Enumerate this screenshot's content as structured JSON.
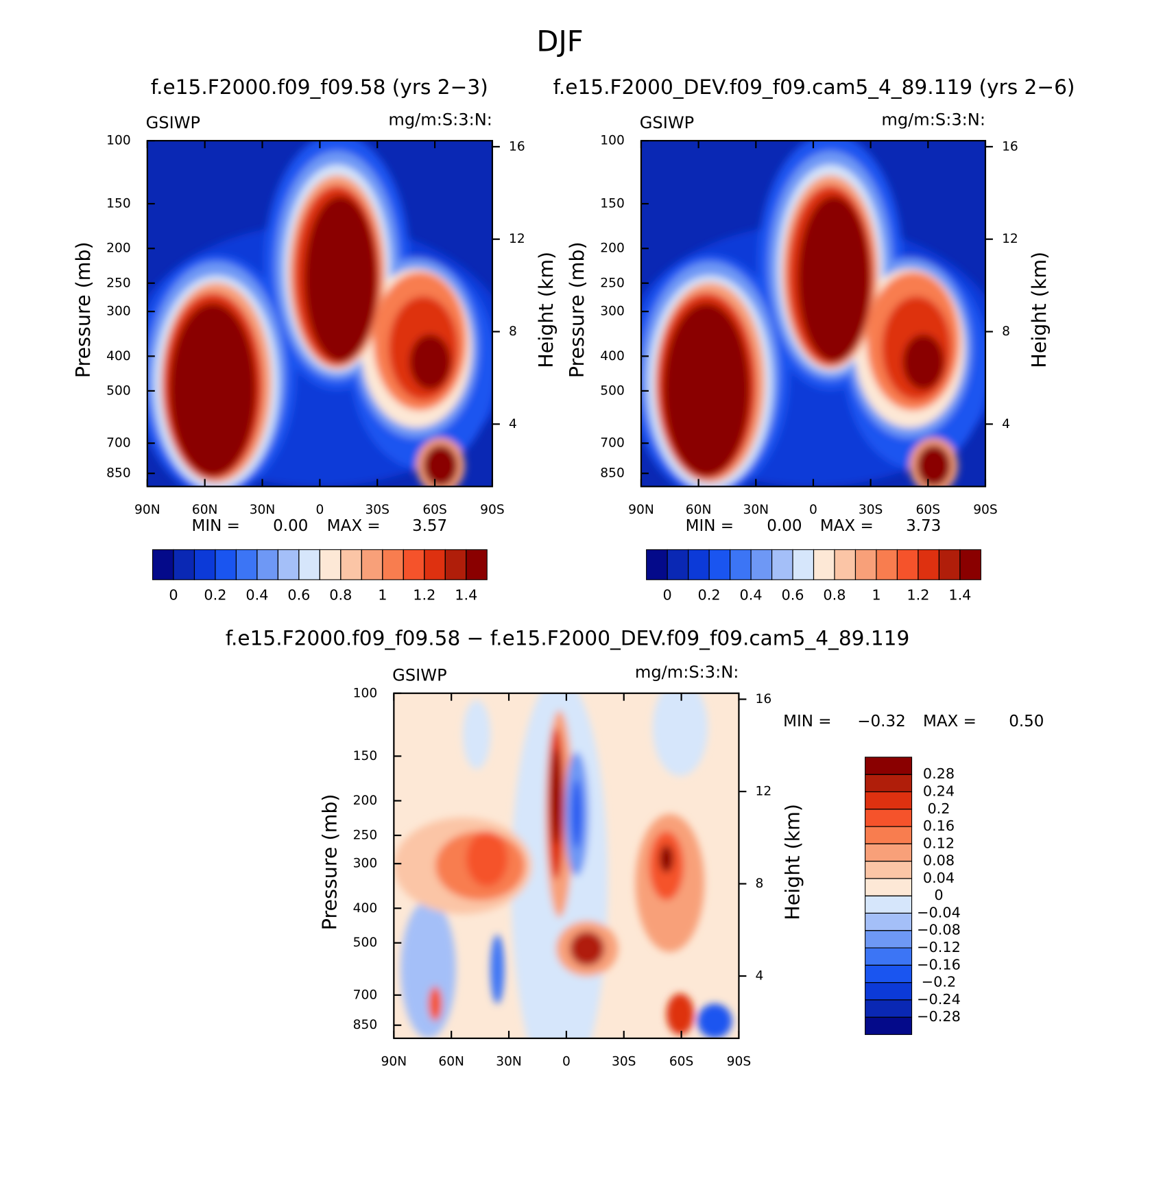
{
  "title": "DJF",
  "chart_data": [
    {
      "type": "contour",
      "title": "f.e15.F2000.f09_f09.58 (yrs 2−3)",
      "left_label": "GSIWP",
      "right_label": "mg/m:S:3:N:",
      "y_label": "Pressure (mb)",
      "y2_label": "Height (km)",
      "xlim": [
        90,
        -90
      ],
      "xticks": [
        {
          "value": 90,
          "label": "90N"
        },
        {
          "value": 60,
          "label": "60N"
        },
        {
          "value": 30,
          "label": "30N"
        },
        0,
        {
          "value": -30,
          "label": "30S"
        },
        {
          "value": -60,
          "label": "60S"
        },
        {
          "value": -90,
          "label": "90S"
        }
      ],
      "ylim": [
        100,
        925
      ],
      "yscale": "log",
      "yticks": [
        100,
        150,
        200,
        250,
        300,
        400,
        500,
        700,
        850
      ],
      "y2lim": [
        1.3,
        16.26
      ],
      "y2ticks": [
        4,
        8,
        12,
        16
      ],
      "stats": [
        {
          "name": "MIN =",
          "value": 0,
          "label": "0.00"
        },
        {
          "name": "MAX =",
          "value": 3.57
        }
      ],
      "colorbar": {
        "orientation": "horizontal",
        "levels": [
          0,
          0.1,
          0.2,
          0.3,
          0.4,
          0.5,
          0.6,
          0.7,
          0.8,
          0.9,
          1,
          1.1,
          1.2,
          1.3,
          1.4
        ],
        "ticks": [
          0,
          0.2,
          0.4,
          0.6,
          0.8,
          1,
          1.2,
          1.4
        ],
        "colors": [
          "#040a8a",
          "#0a28b4",
          "#0c3ad8",
          "#1a55f0",
          "#3c75f5",
          "#6e98f5",
          "#a4bff8",
          "#d6e6fb",
          "#fde8d6",
          "#fbc5a6",
          "#f8a079",
          "#f87d4f",
          "#f5532b",
          "#de3110",
          "#b01e0a",
          "#8a0000"
        ]
      }
    },
    {
      "type": "contour",
      "title": "f.e15.F2000_DEV.f09_f09.cam5_4_89.119 (yrs 2−6)",
      "left_label": "GSIWP",
      "right_label": "mg/m:S:3:N:",
      "y_label": "Pressure (mb)",
      "y2_label": "Height (km)",
      "xlim": [
        90,
        -90
      ],
      "xticks": [
        {
          "value": 90,
          "label": "90N"
        },
        {
          "value": 60,
          "label": "60N"
        },
        {
          "value": 30,
          "label": "30N"
        },
        0,
        {
          "value": -30,
          "label": "30S"
        },
        {
          "value": -60,
          "label": "60S"
        },
        {
          "value": -90,
          "label": "90S"
        }
      ],
      "ylim": [
        100,
        925
      ],
      "yscale": "log",
      "yticks": [
        100,
        150,
        200,
        250,
        300,
        400,
        500,
        700,
        850
      ],
      "y2lim": [
        1.3,
        16.26
      ],
      "y2ticks": [
        4,
        8,
        12,
        16
      ],
      "stats": [
        {
          "name": "MIN =",
          "value": 0,
          "label": "0.00"
        },
        {
          "name": "MAX =",
          "value": 3.73
        }
      ],
      "colorbar": {
        "orientation": "horizontal",
        "levels": [
          0,
          0.1,
          0.2,
          0.3,
          0.4,
          0.5,
          0.6,
          0.7,
          0.8,
          0.9,
          1,
          1.1,
          1.2,
          1.3,
          1.4
        ],
        "ticks": [
          0,
          0.2,
          0.4,
          0.6,
          0.8,
          1,
          1.2,
          1.4
        ],
        "colors": [
          "#040a8a",
          "#0a28b4",
          "#0c3ad8",
          "#1a55f0",
          "#3c75f5",
          "#6e98f5",
          "#a4bff8",
          "#d6e6fb",
          "#fde8d6",
          "#fbc5a6",
          "#f8a079",
          "#f87d4f",
          "#f5532b",
          "#de3110",
          "#b01e0a",
          "#8a0000"
        ]
      }
    },
    {
      "type": "contour",
      "title": "f.e15.F2000.f09_f09.58 − f.e15.F2000_DEV.f09_f09.cam5_4_89.119",
      "left_label": "GSIWP",
      "right_label": "mg/m:S:3:N:",
      "y_label": "Pressure (mb)",
      "y2_label": "Height (km)",
      "xlim": [
        90,
        -90
      ],
      "xticks": [
        {
          "value": 90,
          "label": "90N"
        },
        {
          "value": 60,
          "label": "60N"
        },
        {
          "value": 30,
          "label": "30N"
        },
        0,
        {
          "value": -30,
          "label": "30S"
        },
        {
          "value": -60,
          "label": "60S"
        },
        {
          "value": -90,
          "label": "90S"
        }
      ],
      "ylim": [
        100,
        925
      ],
      "yscale": "log",
      "yticks": [
        100,
        150,
        200,
        250,
        300,
        400,
        500,
        700,
        850
      ],
      "y2lim": [
        1.3,
        16.26
      ],
      "y2ticks": [
        4,
        8,
        12,
        16
      ],
      "stats": [
        {
          "name": "MIN =",
          "value": -0.32,
          "label": "−0.32"
        },
        {
          "name": "MAX =",
          "value": 0.5,
          "label": "0.50"
        }
      ],
      "colorbar": {
        "orientation": "vertical",
        "levels": [
          -0.28,
          -0.24,
          -0.2,
          -0.16,
          -0.12,
          -0.08,
          -0.04,
          0,
          0.04,
          0.08,
          0.12,
          0.16,
          0.2,
          0.24,
          0.28
        ],
        "ticks": [
          {
            "value": -0.28,
            "label": "−0.28"
          },
          {
            "value": -0.24,
            "label": "−0.24"
          },
          {
            "value": -0.2,
            "label": "−0.2"
          },
          {
            "value": -0.16,
            "label": "−0.16"
          },
          {
            "value": -0.12,
            "label": "−0.12"
          },
          {
            "value": -0.08,
            "label": "−0.08"
          },
          {
            "value": -0.04,
            "label": "−0.04"
          },
          0,
          0.04,
          0.08,
          0.12,
          0.16,
          0.2,
          0.24,
          0.28
        ],
        "colors": [
          "#040a8a",
          "#0a28b4",
          "#0c3ad8",
          "#1a55f0",
          "#3c75f5",
          "#6e98f5",
          "#a4bff8",
          "#d6e6fb",
          "#fde8d6",
          "#fbc5a6",
          "#f8a079",
          "#f87d4f",
          "#f5532b",
          "#de3110",
          "#b01e0a",
          "#8a0000"
        ]
      }
    }
  ]
}
